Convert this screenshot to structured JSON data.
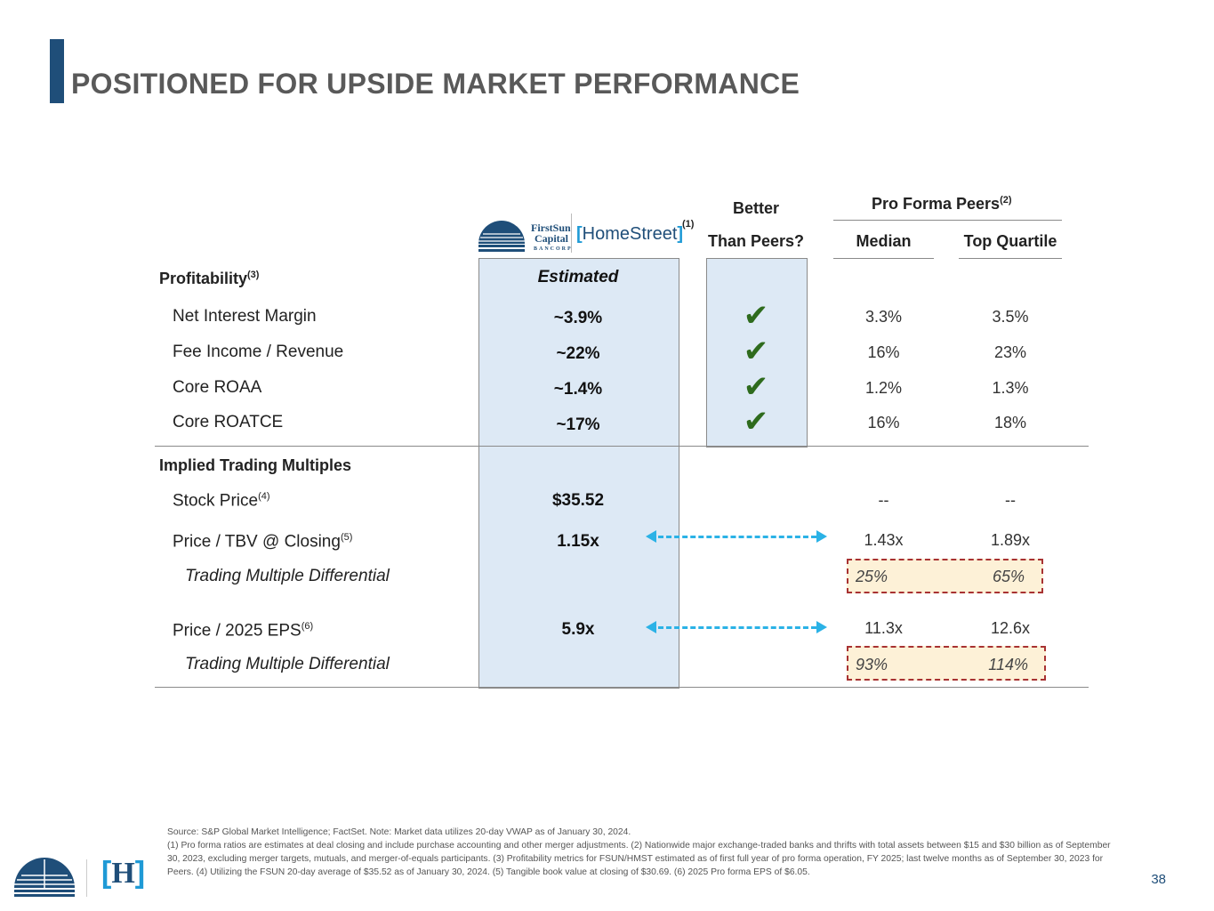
{
  "page": {
    "title": "POSITIONED FOR UPSIDE MARKET PERFORMANCE",
    "page_number": "38",
    "brand_color": "#1f4e79"
  },
  "logos": {
    "firstsun_line1": "FirstSun",
    "firstsun_line2": "Capital",
    "firstsun_line3": "BANCORP",
    "homestreet": "HomeStreet",
    "homestreet_note": "(1)",
    "footer_h": "H"
  },
  "header": {
    "better_line1": "Better",
    "better_line2": "Than Peers?",
    "peers_title": "Pro Forma Peers",
    "peers_note": "(2)",
    "median": "Median",
    "top_quartile": "Top Quartile"
  },
  "profitability": {
    "title": "Profitability",
    "title_note": "(3)",
    "estimated": "Estimated",
    "rows": [
      {
        "label": "Net Interest Margin",
        "value": "~3.9%",
        "median": "3.3%",
        "top": "3.5%"
      },
      {
        "label": "Fee Income / Revenue",
        "value": "~22%",
        "median": "16%",
        "top": "23%"
      },
      {
        "label": "Core ROAA",
        "value": "~1.4%",
        "median": "1.2%",
        "top": "1.3%"
      },
      {
        "label": "Core ROATCE",
        "value": "~17%",
        "median": "16%",
        "top": "18%"
      }
    ]
  },
  "multiples": {
    "title": "Implied Trading Multiples",
    "stock_price": {
      "label": "Stock Price",
      "note": "(4)",
      "value": "$35.52",
      "median": "--",
      "top": "--"
    },
    "tbv": {
      "label": "Price / TBV @ Closing",
      "note": "(5)",
      "value": "1.15x",
      "median": "1.43x",
      "top": "1.89x"
    },
    "tbv_diff": {
      "label": "Trading Multiple Differential",
      "median": "25%",
      "top": "65%"
    },
    "eps": {
      "label": "Price / 2025 EPS",
      "note": "(6)",
      "value": "5.9x",
      "median": "11.3x",
      "top": "12.6x"
    },
    "eps_diff": {
      "label": "Trading Multiple Differential",
      "median": "93%",
      "top": "114%"
    }
  },
  "footnotes": {
    "line1": "Source: S&P Global Market Intelligence; FactSet. Note: Market data utilizes 20-day VWAP as of January 30, 2024.",
    "line2": "(1) Pro forma ratios are estimates at deal closing and include purchase accounting and other merger adjustments. (2) Nationwide major exchange-traded banks and thrifts with total assets between $15 and $30 billion as of September 30, 2023, excluding merger targets, mutuals, and merger-of-equals participants. (3) Profitability metrics for FSUN/HMST estimated as of first full year of pro forma operation, FY 2025; last twelve months as of September 30, 2023 for Peers. (4) Utilizing the FSUN 20-day average of $35.52 as of January 30, 2024. (5) Tangible book value at closing of $30.69. (6) 2025 Pro forma EPS of $6.05."
  },
  "colors": {
    "check": "#2e6b1d",
    "arrow": "#2bb2e6",
    "diff_border": "#a83232",
    "diff_fill": "#fdf1d7",
    "highlight_fill": "#dde9f5"
  }
}
